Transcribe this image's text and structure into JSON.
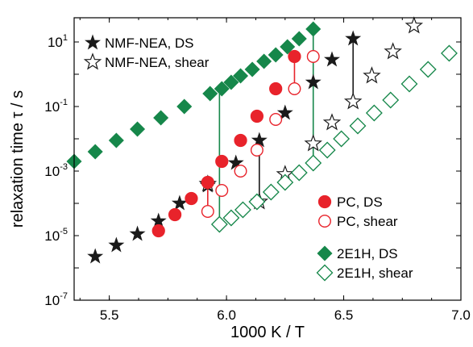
{
  "chart_data": {
    "type": "scatter",
    "xlabel": "1000 K / T",
    "ylabel": "relaxation time τ / s",
    "xlim": [
      5.35,
      7.0
    ],
    "ylim": [
      -7,
      1.75
    ],
    "yscale": "log",
    "x_ticks": [
      5.5,
      6.0,
      6.5,
      7.0
    ],
    "x_tick_labels": [
      "5.5",
      "6.0",
      "6.5",
      "7.0"
    ],
    "y_ticks": [
      -7,
      -5,
      -3,
      -1,
      1
    ],
    "y_tick_labels": [
      {
        "base": "10",
        "exp": "-7"
      },
      {
        "base": "10",
        "exp": "-5"
      },
      {
        "base": "10",
        "exp": "-3"
      },
      {
        "base": "10",
        "exp": "-1"
      },
      {
        "base": "10",
        "exp": "1"
      }
    ],
    "legend_groups": [
      {
        "position": "top-left",
        "items": [
          "NMF-NEA, DS",
          "NMF-NEA, shear"
        ]
      },
      {
        "position": "right-middle",
        "items": [
          "PC, DS",
          "PC, shear"
        ]
      },
      {
        "position": "bottom-right",
        "items": [
          "2E1H, DS",
          "2E1H, shear"
        ]
      }
    ],
    "series": [
      {
        "name": "NMF-NEA, DS",
        "marker": "star-filled",
        "color": "#1a1a1a",
        "x": [
          5.44,
          5.53,
          5.62,
          5.71,
          5.8,
          5.92,
          6.04,
          6.14,
          6.25,
          6.37,
          6.45,
          6.54
        ],
        "log_y": [
          -5.65,
          -5.3,
          -4.95,
          -4.55,
          -4.0,
          -3.45,
          -2.75,
          -2.05,
          -1.2,
          -0.25,
          0.45,
          1.1
        ]
      },
      {
        "name": "NMF-NEA, shear",
        "marker": "star-open",
        "color": "#1a1a1a",
        "x": [
          5.92,
          6.14,
          6.25,
          6.37,
          6.45,
          6.54,
          6.62,
          6.71,
          6.8
        ],
        "log_y": [
          -3.4,
          -3.95,
          -3.1,
          -2.15,
          -1.5,
          -0.85,
          -0.05,
          0.7,
          1.5
        ]
      },
      {
        "name": "PC, DS",
        "marker": "circle-filled",
        "color": "#e8232b",
        "x": [
          5.71,
          5.78,
          5.85,
          5.92,
          5.98,
          6.06,
          6.13,
          6.21,
          6.29
        ],
        "log_y": [
          -4.85,
          -4.35,
          -3.85,
          -3.35,
          -2.7,
          -2.05,
          -1.3,
          -0.45,
          0.55
        ]
      },
      {
        "name": "PC, shear",
        "marker": "circle-open",
        "color": "#e8232b",
        "x": [
          5.92,
          5.98,
          6.06,
          6.13,
          6.21,
          6.29,
          6.37
        ],
        "log_y": [
          -4.25,
          -3.6,
          -3.0,
          -2.35,
          -1.4,
          -0.45,
          0.55
        ]
      },
      {
        "name": "2E1H, DS",
        "marker": "diamond-filled",
        "color": "#16874a",
        "x": [
          5.35,
          5.44,
          5.53,
          5.62,
          5.72,
          5.82,
          5.93,
          5.98,
          6.02,
          6.06,
          6.11,
          6.16,
          6.21,
          6.26,
          6.31,
          6.37
        ],
        "log_y": [
          -2.7,
          -2.4,
          -2.05,
          -1.7,
          -1.35,
          -1.0,
          -0.6,
          -0.45,
          -0.25,
          -0.05,
          0.15,
          0.4,
          0.6,
          0.85,
          1.1,
          1.4
        ]
      },
      {
        "name": "2E1H, shear",
        "marker": "diamond-open",
        "color": "#16874a",
        "x": [
          5.97,
          6.02,
          6.07,
          6.13,
          6.19,
          6.25,
          6.31,
          6.37,
          6.43,
          6.49,
          6.56,
          6.63,
          6.7,
          6.78,
          6.86,
          6.95
        ],
        "log_y": [
          -4.65,
          -4.45,
          -4.2,
          -3.95,
          -3.65,
          -3.35,
          -3.05,
          -2.75,
          -2.35,
          -2.0,
          -1.6,
          -1.2,
          -0.8,
          -0.3,
          0.15,
          0.65
        ]
      }
    ],
    "connectors": [
      {
        "color": "#e8232b",
        "x": 5.92,
        "log_y": [
          -4.25,
          -3.35
        ]
      },
      {
        "color": "#e8232b",
        "x": 6.29,
        "log_y": [
          -0.45,
          0.55
        ]
      },
      {
        "color": "#1a1a1a",
        "x": 6.14,
        "log_y": [
          -3.95,
          -2.05
        ]
      },
      {
        "color": "#1a1a1a",
        "x": 6.54,
        "log_y": [
          -0.85,
          1.1
        ]
      },
      {
        "color": "#16874a",
        "x": 5.97,
        "log_y": [
          -4.65,
          -0.6
        ]
      },
      {
        "color": "#16874a",
        "x": 6.37,
        "log_y": [
          -2.75,
          1.4
        ]
      }
    ]
  }
}
